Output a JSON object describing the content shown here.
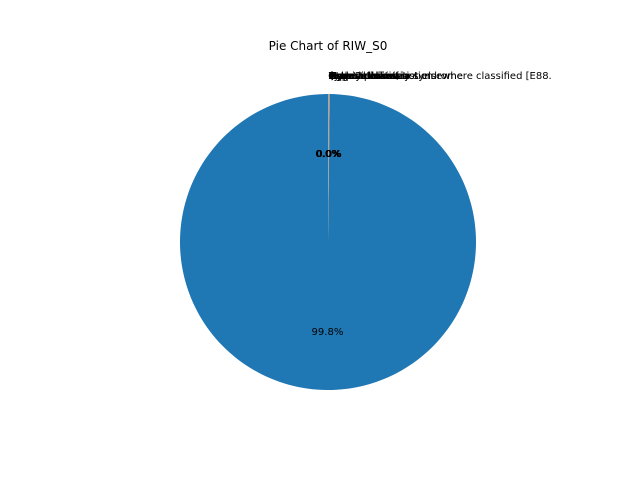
{
  "chart_data": {
    "type": "pie",
    "title": "Pie Chart of RIW_S0",
    "series_color": "#1f77b4",
    "slices": [
      {
        "label": "",
        "value": 99.8,
        "pct_text": "99.8%",
        "color": "#1f77b4"
      },
      {
        "label": "] metabolism, not elsewhere classified [E88.",
        "value": 0.02,
        "pct_text": "0.0%",
        "color": "#ff7f0e"
      },
      {
        "label": "Endometriosis",
        "value": 0.02,
        "pct_text": "0.0%",
        "color": "#2ca02c"
      },
      {
        "label": "Hypertension",
        "value": 0.02,
        "pct_text": "0.0%",
        "color": "#d62728"
      },
      {
        "label": "Polycystic ovary syndrome",
        "value": 0.02,
        "pct_text": "0.0%",
        "color": "#9467bd"
      },
      {
        "label": "Atopic dermatitis",
        "value": 0.02,
        "pct_text": "0.0%",
        "color": "#8c564b"
      },
      {
        "label": "Type 2 diabetes",
        "value": 0.02,
        "pct_text": "0.0%",
        "color": "#e377c2"
      },
      {
        "label": "Asthma",
        "value": 0.02,
        "pct_text": "0.0%",
        "color": "#7f7f7f"
      },
      {
        "label": "Myocardial infarction",
        "value": 0.02,
        "pct_text": "0.0%",
        "color": "#bcbd22"
      },
      {
        "label": "Hyperlipidaemia",
        "value": 0.02,
        "pct_text": "0.0%",
        "color": "#17becf"
      },
      {
        "label": "Osteoarthritis",
        "value": 0.02,
        "pct_text": "0.0%",
        "color": "#1f77b4"
      }
    ]
  }
}
